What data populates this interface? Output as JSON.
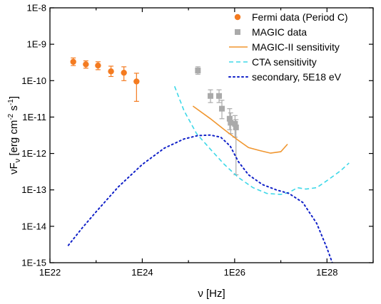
{
  "chart_data": {
    "type": "scatter",
    "x_scale": "log",
    "y_scale": "log",
    "xlim": [
      1e+22,
      1e+29
    ],
    "ylim": [
      1e-15,
      1e-08
    ],
    "xlabel": "ν [Hz]",
    "ylabel": {
      "base": "νF",
      "sub": "ν",
      "units_a": " [erg cm",
      "sup_a": "-2",
      "units_b": " s",
      "sup_b": "-1",
      "units_c": "]"
    },
    "x_ticks": [
      {
        "value": 1e+22,
        "label": "1E22"
      },
      {
        "value": 1e+24,
        "label": "1E24"
      },
      {
        "value": 1e+26,
        "label": "1E26"
      },
      {
        "value": 1e+28,
        "label": "1E28"
      }
    ],
    "y_ticks": [
      {
        "value": 1e-08,
        "label": "1E-8"
      },
      {
        "value": 1e-09,
        "label": "1E-9"
      },
      {
        "value": 1e-10,
        "label": "1E-10"
      },
      {
        "value": 1e-11,
        "label": "1E-11"
      },
      {
        "value": 1e-12,
        "label": "1E-12"
      },
      {
        "value": 1e-13,
        "label": "1E-13"
      },
      {
        "value": 1e-14,
        "label": "1E-14"
      },
      {
        "value": 1e-15,
        "label": "1E-15"
      }
    ],
    "grid": false,
    "legend_position": "top-right",
    "series": [
      {
        "name": "Fermi data (Period C)",
        "kind": "points",
        "marker": "circle",
        "color": "#F47B20",
        "points": [
          {
            "x": 3.2e+22,
            "y": 3.3e-10,
            "ylo": 2.6e-10,
            "yhi": 4.2e-10
          },
          {
            "x": 6e+22,
            "y": 2.8e-10,
            "ylo": 2.2e-10,
            "yhi": 3.5e-10
          },
          {
            "x": 1.1e+23,
            "y": 2.6e-10,
            "ylo": 2e-10,
            "yhi": 3.3e-10
          },
          {
            "x": 2.1e+23,
            "y": 1.8e-10,
            "ylo": 1.3e-10,
            "yhi": 2.5e-10
          },
          {
            "x": 4e+23,
            "y": 1.65e-10,
            "ylo": 1e-10,
            "yhi": 2.4e-10
          },
          {
            "x": 7.5e+23,
            "y": 9.5e-11,
            "ylo": 2.7e-11,
            "yhi": 1.6e-10
          }
        ]
      },
      {
        "name": "MAGIC data",
        "kind": "points",
        "marker": "square",
        "color": "#AAAAAA",
        "points": [
          {
            "x": 1.6e+25,
            "y": 1.9e-10,
            "ylo": 1.5e-10,
            "yhi": 2.4e-10
          },
          {
            "x": 3e+25,
            "y": 3.8e-11,
            "ylo": 2.5e-11,
            "yhi": 5.6e-11
          },
          {
            "x": 4.6e+25,
            "y": 3.8e-11,
            "ylo": 2.5e-11,
            "yhi": 5.6e-11
          },
          {
            "x": 5.3e+25,
            "y": 1.7e-11,
            "ylo": 9e-12,
            "yhi": 2.9e-11
          },
          {
            "x": 7.8e+25,
            "y": 9e-12,
            "ylo": 4.5e-12,
            "yhi": 1.7e-11
          },
          {
            "x": 8.2e+25,
            "y": 7e-12,
            "ylo": 3.5e-12,
            "yhi": 1.3e-11
          },
          {
            "x": 1.02e+26,
            "y": 6.5e-12,
            "ylo": 2.8e-12,
            "yhi": 1.1e-11
          },
          {
            "x": 1.07e+26,
            "y": 5.2e-12,
            "ylo": 2.6e-13,
            "yhi": 8.5e-12
          }
        ]
      },
      {
        "name": "MAGIC-II sensitivity",
        "kind": "line",
        "style": "solid",
        "color": "#F0962F",
        "x": [
          1.25e+25,
          3e+25,
          6e+25,
          1.2e+26,
          2e+26,
          3.5e+26,
          6e+26,
          1e+27,
          1.4e+27
        ],
        "y": [
          2e-11,
          9e-12,
          4.5e-12,
          2.3e-12,
          1.45e-12,
          1.2e-12,
          1.02e-12,
          1.12e-12,
          1.8e-12
        ]
      },
      {
        "name": "CTA sensitivity",
        "kind": "line",
        "style": "dashed",
        "color": "#3ED8E8",
        "x": [
          5e+24,
          8e+24,
          1.5e+25,
          3e+25,
          6e+25,
          1.2e+26,
          2.5e+26,
          5e+26,
          1e+27,
          1.5e+27,
          2.3e+27,
          3.5e+27,
          6e+27,
          1e+28,
          2e+28,
          3e+28
        ],
        "y": [
          7e-11,
          1.5e-11,
          3.5e-12,
          1.3e-12,
          5e-13,
          2.2e-13,
          1.15e-13,
          8e-14,
          7.5e-14,
          8.5e-14,
          1.15e-13,
          1.05e-13,
          1.15e-13,
          1.8e-13,
          3.4e-13,
          5.5e-13
        ]
      },
      {
        "name": "secondary, 5E18 eV",
        "kind": "line",
        "style": "dotted",
        "color": "#1020C8",
        "x": [
          2.5e+22,
          5e+22,
          1e+23,
          3e+23,
          1e+24,
          3e+24,
          8e+24,
          1.6e+25,
          3e+25,
          5e+25,
          8e+25,
          1.2e+26,
          2e+26,
          4e+26,
          8e+26,
          1.5e+27,
          3e+27,
          6e+27,
          1e+28,
          1.3e+28
        ],
        "y": [
          3e-15,
          9e-15,
          2.5e-14,
          1.2e-13,
          5e-13,
          1.4e-12,
          2.5e-12,
          3.1e-12,
          3.2e-12,
          2.8e-12,
          1.6e-12,
          6e-13,
          2.6e-13,
          1.4e-13,
          1e-13,
          8e-14,
          4.5e-14,
          1.2e-14,
          2.5e-15,
          1e-15
        ]
      }
    ]
  }
}
